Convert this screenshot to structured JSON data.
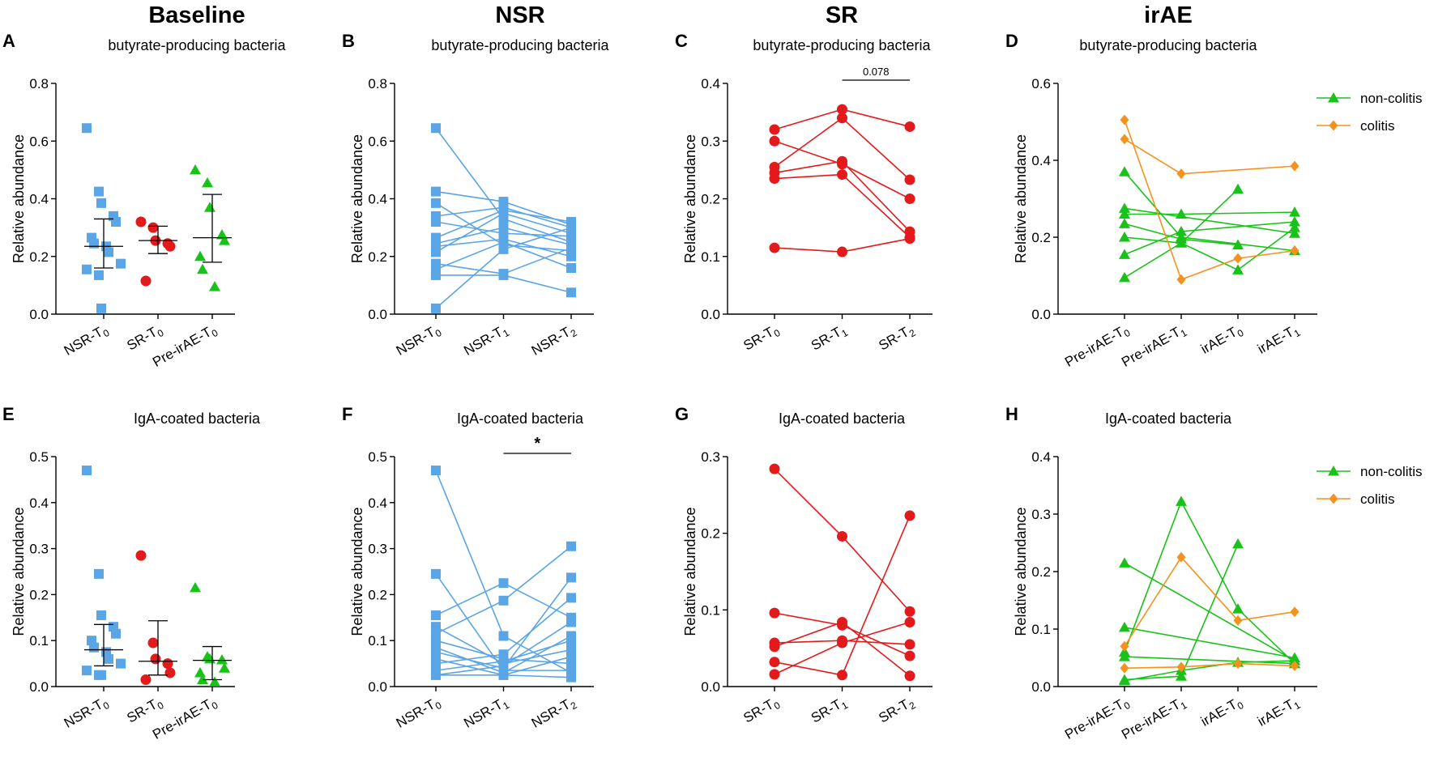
{
  "column_headers": [
    "Baseline",
    "NSR",
    "SR",
    "irAE"
  ],
  "colors": {
    "nsr": "#5aa5e6",
    "sr": "#e31a1c",
    "irae": "#19c219",
    "colitis": "#f5921e",
    "axis": "#000000"
  },
  "chart_data": [
    {
      "letter": "A",
      "type": "scatter",
      "title": "butyrate-producing bacteria",
      "ylabel": "Relative abundance",
      "ylim": [
        0,
        0.8
      ],
      "yticks": [
        "0.0",
        "0.2",
        "0.4",
        "0.6",
        "0.8"
      ],
      "groups": [
        {
          "base": "NSR-T",
          "sub": "0",
          "color": "#5aa5e6",
          "marker": "square",
          "values": [
            0.645,
            0.425,
            0.385,
            0.34,
            0.32,
            0.265,
            0.245,
            0.235,
            0.215,
            0.175,
            0.155,
            0.135,
            0.02
          ],
          "median": 0.235,
          "q1": 0.16,
          "q3": 0.33
        },
        {
          "base": "SR-T",
          "sub": "0",
          "color": "#e31a1c",
          "marker": "circle",
          "values": [
            0.32,
            0.3,
            0.255,
            0.245,
            0.235,
            0.115
          ],
          "median": 0.255,
          "q1": 0.21,
          "q3": 0.305
        },
        {
          "base": "Pre-irAE-T",
          "sub": "0",
          "color": "#19c219",
          "marker": "triangle",
          "values": [
            0.5,
            0.455,
            0.37,
            0.275,
            0.255,
            0.2,
            0.155,
            0.095
          ],
          "median": 0.265,
          "q1": 0.18,
          "q3": 0.415
        }
      ]
    },
    {
      "letter": "B",
      "type": "line",
      "title": "butyrate-producing bacteria",
      "ylabel": "Relative abundance",
      "ylim": [
        0,
        0.8
      ],
      "yticks": [
        "0.0",
        "0.2",
        "0.4",
        "0.6",
        "0.8"
      ],
      "categories": [
        {
          "base": "NSR-T",
          "sub": "0"
        },
        {
          "base": "NSR-T",
          "sub": "1"
        },
        {
          "base": "NSR-T",
          "sub": "2"
        }
      ],
      "color": "#5aa5e6",
      "marker": "square",
      "series": [
        [
          0.645,
          0.33,
          0.25
        ],
        [
          0.425,
          0.39,
          0.31
        ],
        [
          0.385,
          0.24,
          0.22
        ],
        [
          0.34,
          0.37,
          0.3
        ],
        [
          0.32,
          0.28,
          0.27
        ],
        [
          0.265,
          0.36,
          0.32
        ],
        [
          0.245,
          0.3,
          0.24
        ],
        [
          0.235,
          0.26,
          0.2
        ],
        [
          0.215,
          0.35,
          0.28
        ],
        [
          0.175,
          0.14,
          0.23
        ],
        [
          0.155,
          0.25,
          0.16
        ],
        [
          0.135,
          0.135,
          0.075
        ],
        [
          0.02,
          0.225,
          0.3
        ]
      ]
    },
    {
      "letter": "C",
      "type": "line",
      "title": "butyrate-producing bacteria",
      "ylabel": "Relative abundance",
      "ylim": [
        0,
        0.4
      ],
      "yticks": [
        "0.0",
        "0.1",
        "0.2",
        "0.3",
        "0.4"
      ],
      "categories": [
        {
          "base": "SR-T",
          "sub": "0"
        },
        {
          "base": "SR-T",
          "sub": "1"
        },
        {
          "base": "SR-T",
          "sub": "2"
        }
      ],
      "color": "#e31a1c",
      "marker": "circle",
      "series": [
        [
          0.32,
          0.355,
          0.325
        ],
        [
          0.3,
          0.26,
          0.2
        ],
        [
          0.255,
          0.34,
          0.233
        ],
        [
          0.245,
          0.265,
          0.143
        ],
        [
          0.235,
          0.242,
          0.133
        ],
        [
          0.115,
          0.108,
          0.131
        ]
      ],
      "annotation": {
        "text": "0.078",
        "from": 1,
        "to": 2
      }
    },
    {
      "letter": "D",
      "type": "line",
      "title": "butyrate-producing bacteria",
      "ylabel": "Relative abundance",
      "ylim": [
        0,
        0.6
      ],
      "yticks": [
        "0.0",
        "0.2",
        "0.4",
        "0.6"
      ],
      "categories": [
        {
          "base": "Pre-irAE-T",
          "sub": "0"
        },
        {
          "base": "Pre-irAE-T",
          "sub": "1"
        },
        {
          "base": "irAE-T",
          "sub": "0"
        },
        {
          "base": "irAE-T",
          "sub": "1"
        }
      ],
      "legend": [
        {
          "name": "non-colitis",
          "color": "#19c219",
          "marker": "triangle"
        },
        {
          "name": "colitis",
          "color": "#f5921e",
          "marker": "diamond"
        }
      ],
      "series": [
        {
          "group": "non-colitis",
          "points": [
            [
              0,
              0.37
            ],
            [
              1,
              0.2
            ],
            [
              3,
              0.165
            ]
          ]
        },
        {
          "group": "non-colitis",
          "points": [
            [
              0,
              0.275
            ],
            [
              3,
              0.21
            ]
          ]
        },
        {
          "group": "non-colitis",
          "points": [
            [
              0,
              0.26
            ],
            [
              1,
              0.26
            ],
            [
              3,
              0.265
            ]
          ]
        },
        {
          "group": "non-colitis",
          "points": [
            [
              0,
              0.235
            ],
            [
              1,
              0.195
            ],
            [
              2,
              0.18
            ]
          ]
        },
        {
          "group": "non-colitis",
          "points": [
            [
              0,
              0.2
            ],
            [
              1,
              0.185
            ],
            [
              2,
              0.325
            ]
          ]
        },
        {
          "group": "non-colitis",
          "points": [
            [
              0,
              0.155
            ],
            [
              1,
              0.215
            ],
            [
              3,
              0.24
            ]
          ]
        },
        {
          "group": "non-colitis",
          "points": [
            [
              0,
              0.095
            ],
            [
              1,
              0.185
            ],
            [
              2,
              0.115
            ],
            [
              3,
              0.225
            ]
          ]
        },
        {
          "group": "colitis",
          "points": [
            [
              0,
              0.505
            ],
            [
              1,
              0.09
            ],
            [
              2,
              0.145
            ],
            [
              3,
              0.165
            ]
          ]
        },
        {
          "group": "colitis",
          "points": [
            [
              0,
              0.455
            ],
            [
              1,
              0.365
            ],
            [
              3,
              0.385
            ]
          ]
        }
      ]
    },
    {
      "letter": "E",
      "type": "scatter",
      "title": "IgA-coated bacteria",
      "ylabel": "Relative abundance",
      "ylim": [
        0,
        0.5
      ],
      "yticks": [
        "0.0",
        "0.1",
        "0.2",
        "0.3",
        "0.4",
        "0.5"
      ],
      "groups": [
        {
          "base": "NSR-T",
          "sub": "0",
          "color": "#5aa5e6",
          "marker": "square",
          "values": [
            0.47,
            0.245,
            0.155,
            0.13,
            0.115,
            0.1,
            0.085,
            0.075,
            0.06,
            0.05,
            0.035,
            0.025,
            0.025
          ],
          "median": 0.08,
          "q1": 0.045,
          "q3": 0.135
        },
        {
          "base": "SR-T",
          "sub": "0",
          "color": "#e31a1c",
          "marker": "circle",
          "values": [
            0.285,
            0.095,
            0.06,
            0.05,
            0.03,
            0.015
          ],
          "median": 0.055,
          "q1": 0.025,
          "q3": 0.143
        },
        {
          "base": "Pre-irAE-T",
          "sub": "0",
          "color": "#19c219",
          "marker": "triangle",
          "values": [
            0.215,
            0.065,
            0.06,
            0.058,
            0.04,
            0.03,
            0.015,
            0.01
          ],
          "median": 0.057,
          "q1": 0.015,
          "q3": 0.087
        }
      ]
    },
    {
      "letter": "F",
      "type": "line",
      "title": "IgA-coated bacteria",
      "ylabel": "Relative abundance",
      "ylim": [
        0,
        0.5
      ],
      "yticks": [
        "0.0",
        "0.1",
        "0.2",
        "0.3",
        "0.4",
        "0.5"
      ],
      "categories": [
        {
          "base": "NSR-T",
          "sub": "0"
        },
        {
          "base": "NSR-T",
          "sub": "1"
        },
        {
          "base": "NSR-T",
          "sub": "2"
        }
      ],
      "color": "#5aa5e6",
      "marker": "square",
      "series": [
        [
          0.47,
          0.11,
          0.03
        ],
        [
          0.245,
          0.035,
          0.035
        ],
        [
          0.155,
          0.225,
          0.15
        ],
        [
          0.13,
          0.05,
          0.08
        ],
        [
          0.115,
          0.187,
          0.305
        ],
        [
          0.1,
          0.06,
          0.05
        ],
        [
          0.085,
          0.03,
          0.11
        ],
        [
          0.075,
          0.04,
          0.237
        ],
        [
          0.06,
          0.025,
          0.065
        ],
        [
          0.05,
          0.07,
          0.193
        ],
        [
          0.035,
          0.055,
          0.1
        ],
        [
          0.025,
          0.045,
          0.14
        ],
        [
          0.025,
          0.025,
          0.02
        ]
      ],
      "annotation": {
        "text": "*",
        "from": 1,
        "to": 2
      }
    },
    {
      "letter": "G",
      "type": "line",
      "title": "IgA-coated bacteria",
      "ylabel": "Relative abundance",
      "ylim": [
        0,
        0.3
      ],
      "yticks": [
        "0.0",
        "0.1",
        "0.2",
        "0.3"
      ],
      "categories": [
        {
          "base": "SR-T",
          "sub": "0"
        },
        {
          "base": "SR-T",
          "sub": "1"
        },
        {
          "base": "SR-T",
          "sub": "2"
        }
      ],
      "color": "#e31a1c",
      "marker": "circle",
      "series": [
        [
          0.284,
          0.196,
          0.098
        ],
        [
          0.096,
          0.08,
          0.04
        ],
        [
          0.057,
          0.06,
          0.055
        ],
        [
          0.052,
          0.084,
          0.014
        ],
        [
          0.032,
          0.015,
          0.223
        ],
        [
          0.016,
          0.057,
          0.084
        ]
      ]
    },
    {
      "letter": "H",
      "type": "line",
      "title": "IgA-coated bacteria",
      "ylabel": "Relative abundance",
      "ylim": [
        0,
        0.4
      ],
      "yticks": [
        "0.0",
        "0.1",
        "0.2",
        "0.3",
        "0.4"
      ],
      "categories": [
        {
          "base": "Pre-irAE-T",
          "sub": "0"
        },
        {
          "base": "Pre-irAE-T",
          "sub": "1"
        },
        {
          "base": "irAE-T",
          "sub": "0"
        },
        {
          "base": "irAE-T",
          "sub": "1"
        }
      ],
      "legend": [
        {
          "name": "non-colitis",
          "color": "#19c219",
          "marker": "triangle"
        },
        {
          "name": "colitis",
          "color": "#f5921e",
          "marker": "diamond"
        }
      ],
      "series": [
        {
          "group": "non-colitis",
          "points": [
            [
              0,
              0.215
            ],
            [
              3,
              0.045
            ]
          ]
        },
        {
          "group": "non-colitis",
          "points": [
            [
              0,
              0.103
            ],
            [
              3,
              0.05
            ]
          ]
        },
        {
          "group": "non-colitis",
          "points": [
            [
              0,
              0.06
            ],
            [
              1,
              0.322
            ],
            [
              2,
              0.135
            ],
            [
              3,
              0.04
            ]
          ]
        },
        {
          "group": "non-colitis",
          "points": [
            [
              0,
              0.052
            ],
            [
              3,
              0.04
            ]
          ]
        },
        {
          "group": "non-colitis",
          "points": [
            [
              0,
              0.012
            ],
            [
              1,
              0.018
            ],
            [
              2,
              0.248
            ]
          ]
        },
        {
          "group": "non-colitis",
          "points": [
            [
              0,
              0.01
            ],
            [
              1,
              0.028
            ],
            [
              2,
              0.042
            ],
            [
              3,
              0.045
            ]
          ]
        },
        {
          "group": "colitis",
          "points": [
            [
              0,
              0.07
            ],
            [
              1,
              0.225
            ],
            [
              2,
              0.115
            ],
            [
              3,
              0.13
            ]
          ]
        },
        {
          "group": "colitis",
          "points": [
            [
              0,
              0.032
            ],
            [
              1,
              0.034
            ],
            [
              2,
              0.04
            ],
            [
              3,
              0.036
            ]
          ]
        }
      ]
    }
  ]
}
